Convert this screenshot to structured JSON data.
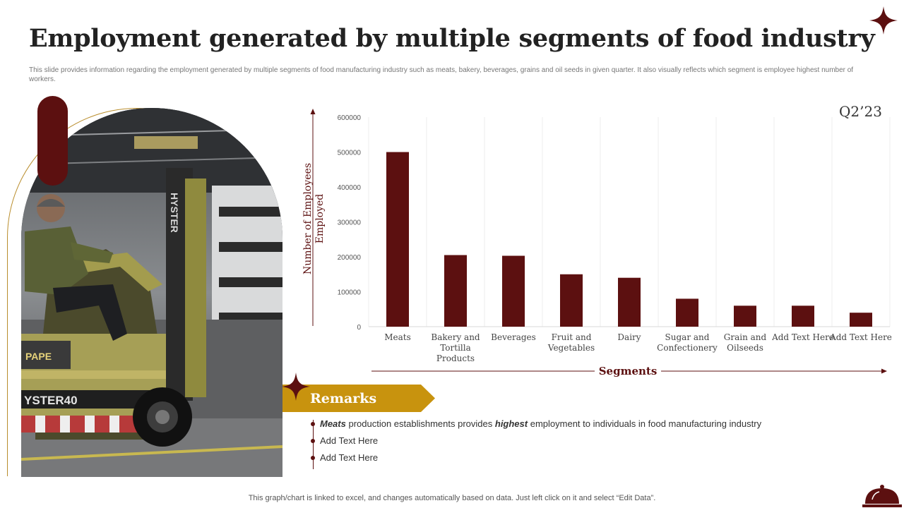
{
  "slide": {
    "title": "Employment generated by multiple segments of food industry",
    "subtitle": "This slide provides information regarding the employment generated by multiple segments of food manufacturing industry such as meats, bakery, beverages, grains and oil seeds in given quarter. It also visually reflects which segment is employee highest number of workers.",
    "period": "Q2’23",
    "footer": "This graph/chart is linked to excel, and changes automatically based on data. Just left click on it and select “Edit Data”."
  },
  "photo": {
    "sign_text": "PAPE",
    "forklift_brand": "HYSTER",
    "forklift_model": "YSTER40"
  },
  "remarks": {
    "heading": "Remarks",
    "items": [
      {
        "prefix": "Meats",
        "text1": " production establishments provides ",
        "emph": "highest",
        "text2": " employment to individuals in food manufacturing industry"
      },
      {
        "text": "Add Text Here"
      },
      {
        "text": "Add Text Here"
      }
    ]
  },
  "colors": {
    "bar": "#5c1010",
    "accent_gold": "#c8930e",
    "maroon": "#5c1010"
  },
  "icons": [
    "four-point-star-icon",
    "cloche-icon"
  ],
  "chart_data": {
    "type": "bar",
    "categories": [
      [
        "Meats"
      ],
      [
        "Bakery and",
        "Tortilla",
        "Products"
      ],
      [
        "Beverages"
      ],
      [
        "Fruit and",
        "Vegetables"
      ],
      [
        "Dairy"
      ],
      [
        "Sugar and",
        "Confectionery"
      ],
      [
        "Grain and",
        "Oilseeds"
      ],
      [
        "Add Text Here"
      ],
      [
        "Add Text Here"
      ]
    ],
    "values": [
      500000,
      205000,
      203000,
      150000,
      140000,
      80000,
      60000,
      60000,
      40000
    ],
    "ylim": [
      0,
      600000
    ],
    "yticks": [
      0,
      100000,
      200000,
      300000,
      400000,
      500000,
      600000
    ],
    "xlabel": "Segments",
    "ylabel_lines": [
      "Number of Employees",
      "Employed"
    ],
    "grid": "vertical"
  }
}
